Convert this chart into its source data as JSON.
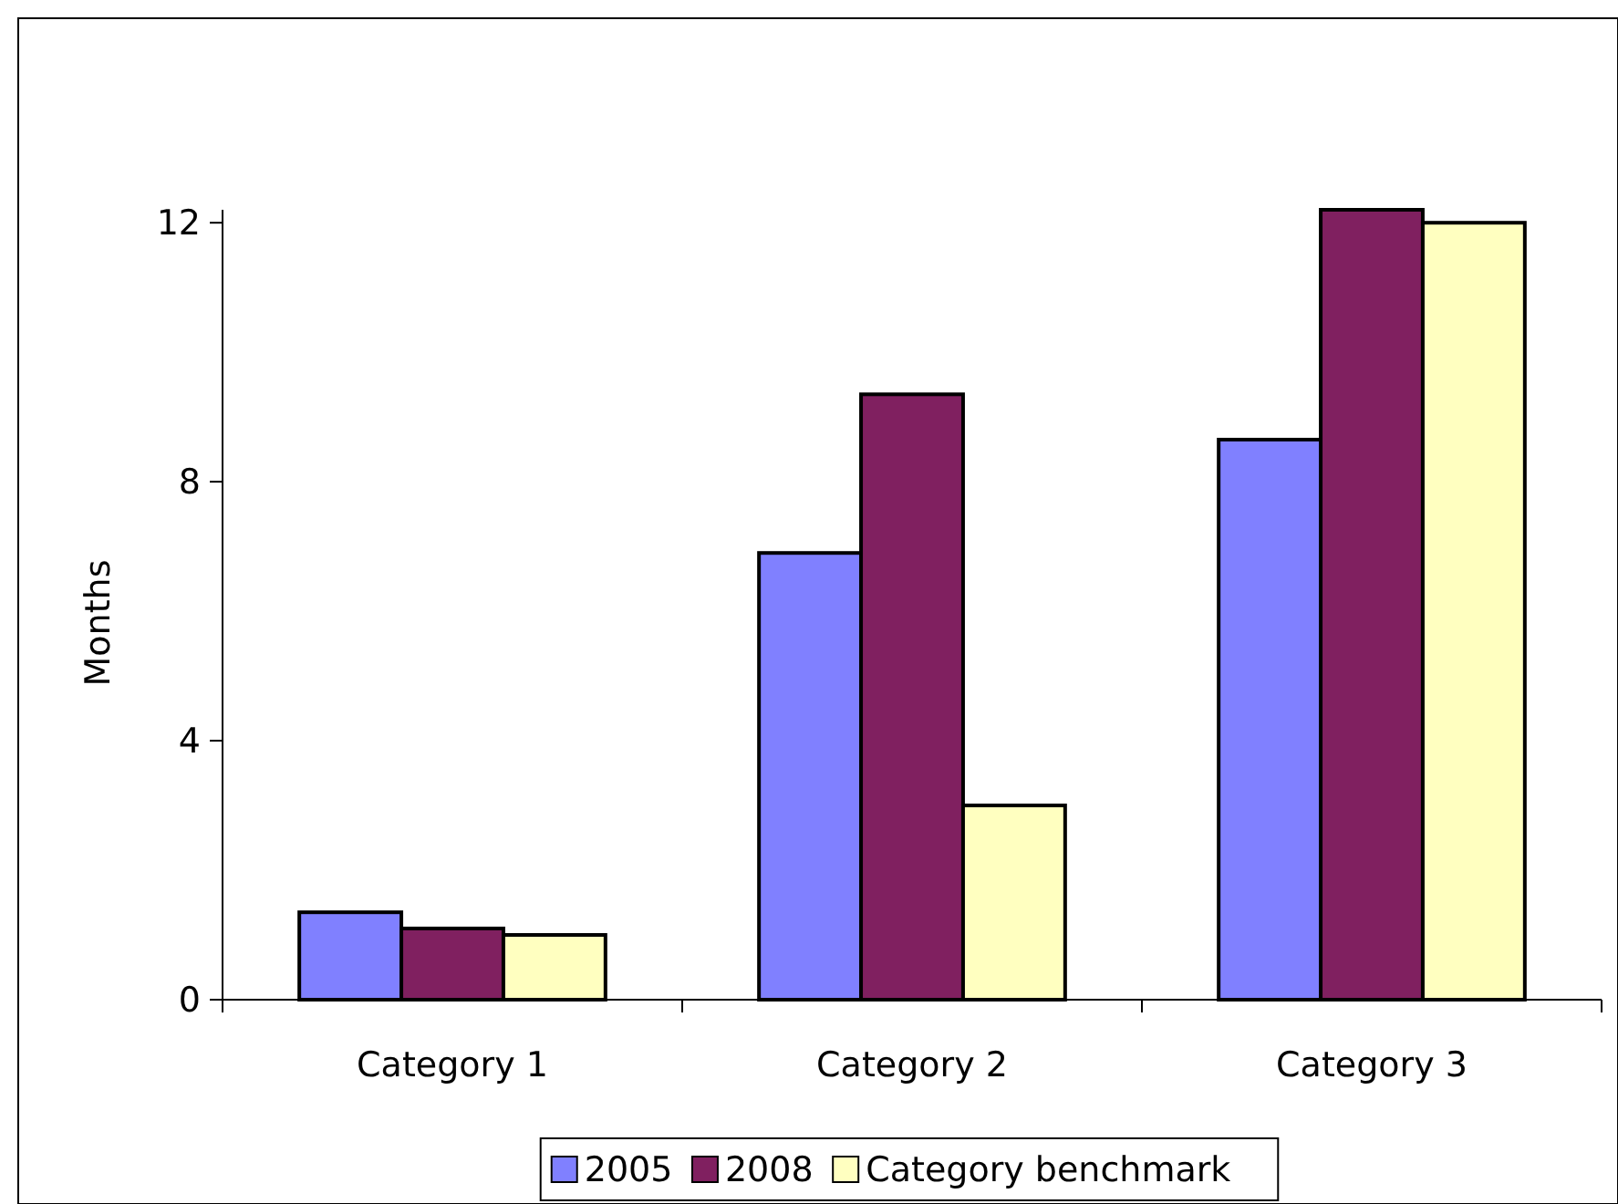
{
  "chart_data": {
    "type": "bar",
    "ylabel": "Months",
    "categories": [
      "Category 1",
      "Category 2",
      "Category 3"
    ],
    "series": [
      {
        "name": "2005",
        "color": "#8080ff",
        "values": [
          1.35,
          6.9,
          8.65
        ]
      },
      {
        "name": "2008",
        "color": "#802060",
        "values": [
          1.1,
          9.35,
          12.2
        ]
      },
      {
        "name": "Category benchmark",
        "color": "#ffffc0",
        "values": [
          1.0,
          3.0,
          12.0
        ]
      }
    ],
    "ylim": [
      0,
      12.2
    ],
    "yticks": [
      0,
      4,
      8,
      12
    ],
    "grid": false,
    "legend": "bottom"
  }
}
